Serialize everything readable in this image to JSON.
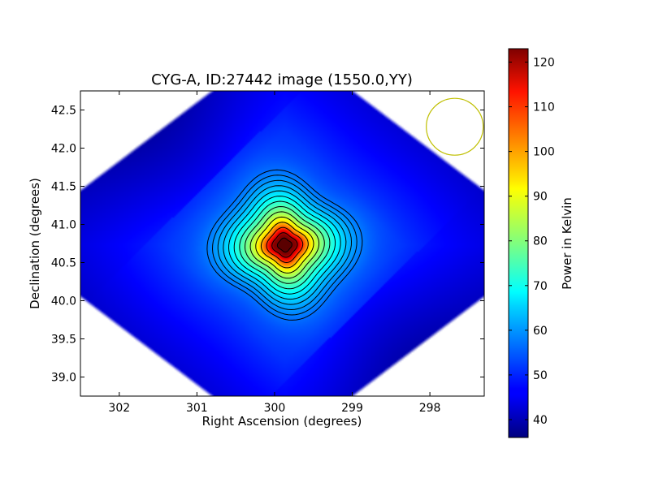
{
  "chart_data": {
    "type": "heatmap",
    "title": "CYG-A, ID:27442 image (1550.0,YY)",
    "xlabel": "Right Ascension (degrees)",
    "ylabel": "Declination (degrees)",
    "xlim": [
      302.5,
      297.3
    ],
    "ylim": [
      38.75,
      42.75
    ],
    "x_ticks": [
      302,
      301,
      300,
      299,
      298
    ],
    "y_ticks": [
      39.0,
      39.5,
      40.0,
      40.5,
      41.0,
      41.5,
      42.0,
      42.5
    ],
    "y_tick_labels": [
      "39.0",
      "39.5",
      "40.0",
      "40.5",
      "41.0",
      "41.5",
      "42.0",
      "42.5"
    ],
    "colorbar": {
      "label": "Power in Kelvin",
      "range": [
        36,
        123
      ],
      "ticks": [
        40,
        50,
        60,
        70,
        80,
        90,
        100,
        110,
        120
      ],
      "colormap": "jet"
    },
    "source": {
      "ra": 299.87,
      "dec": 40.73,
      "peak_kelvin": 123,
      "background_kelvin": 47
    },
    "contour_count": 14,
    "beam_marker": {
      "ra": 297.68,
      "dec": 42.28,
      "color": "#bfbf00"
    }
  }
}
